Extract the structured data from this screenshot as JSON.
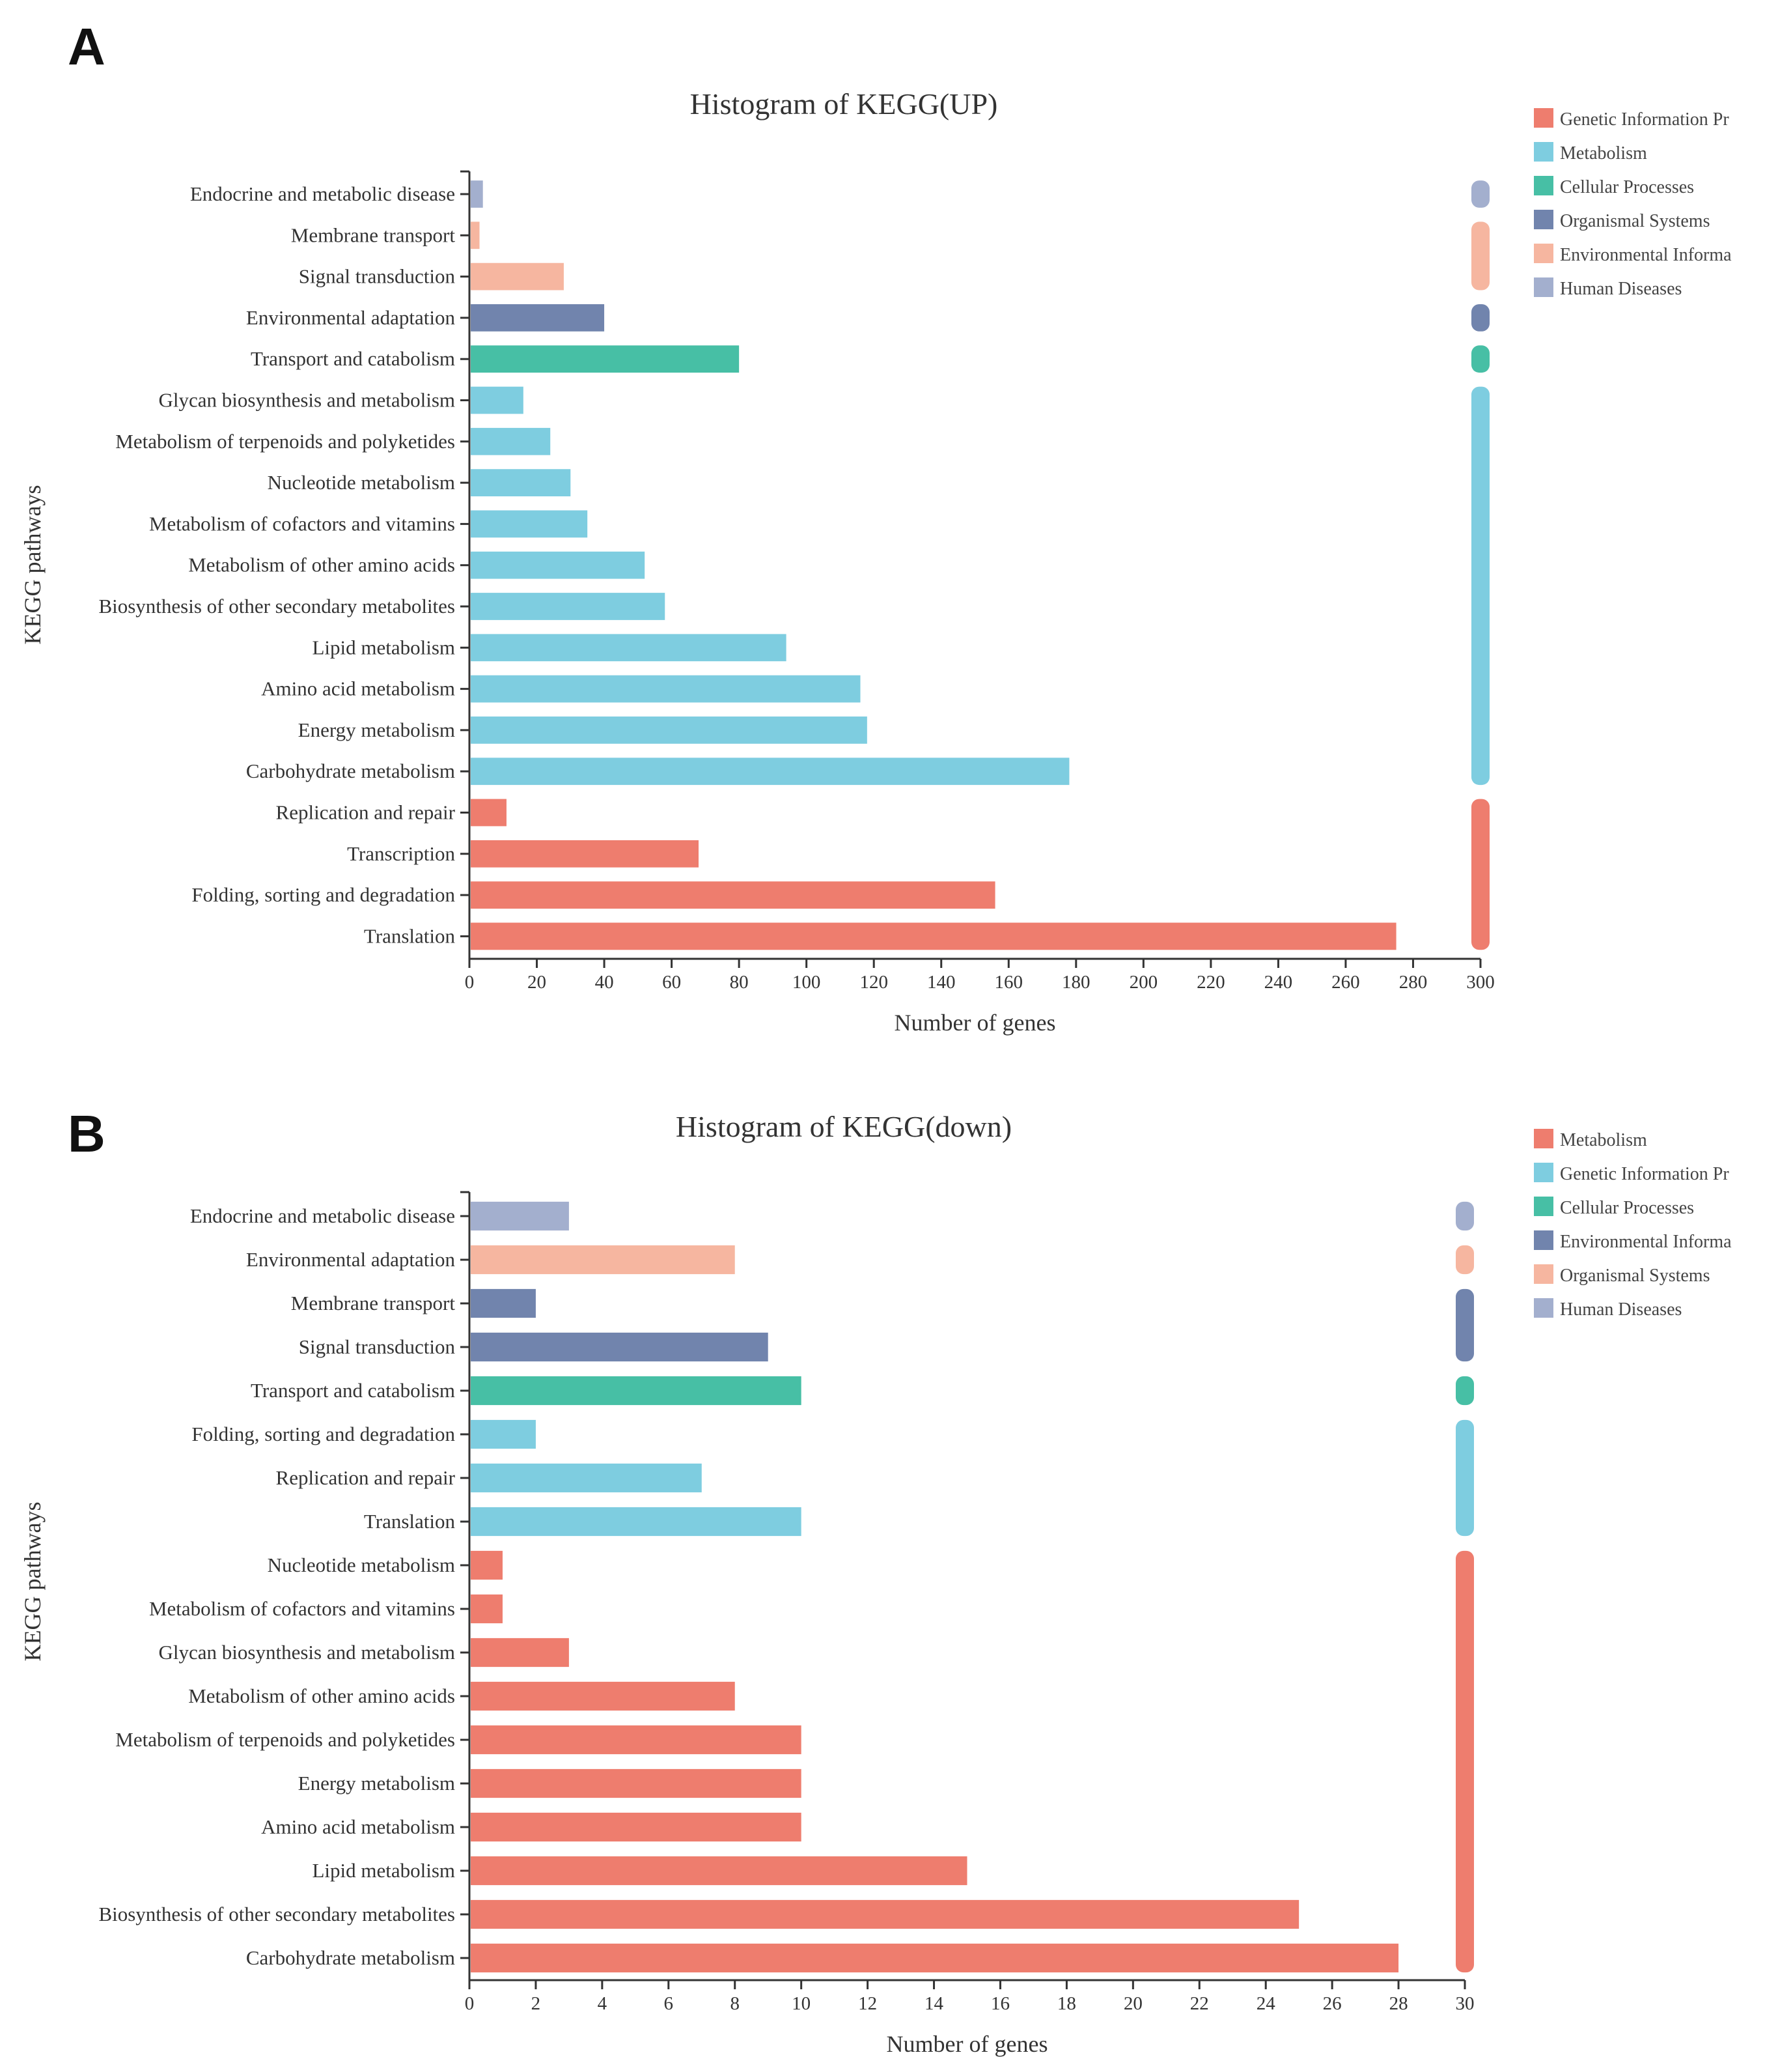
{
  "chart_data": [
    {
      "panel": "A",
      "type": "bar",
      "orientation": "horizontal",
      "title": "Histogram of KEGG(UP)",
      "xlabel": "Number of genes",
      "ylabel": "KEGG pathways",
      "xlim": [
        0,
        300
      ],
      "xticks": [
        0,
        20,
        40,
        60,
        80,
        100,
        120,
        140,
        160,
        180,
        200,
        220,
        240,
        260,
        280,
        300
      ],
      "grid": false,
      "legend_position": "right",
      "legend": [
        {
          "name": "Genetic Information Pr",
          "color": "#EE7D6E"
        },
        {
          "name": "Metabolism",
          "color": "#7ECDE0"
        },
        {
          "name": "Cellular Processes",
          "color": "#47BFA5"
        },
        {
          "name": "Organismal Systems",
          "color": "#7184AD"
        },
        {
          "name": "Environmental Informa",
          "color": "#F6B6A0"
        },
        {
          "name": "Human Diseases",
          "color": "#A3AFCE"
        }
      ],
      "bars": [
        {
          "category": "Endocrine and metabolic disease",
          "value": 4,
          "group": 5
        },
        {
          "category": "Membrane transport",
          "value": 3,
          "group": 4
        },
        {
          "category": "Signal transduction",
          "value": 28,
          "group": 4
        },
        {
          "category": "Environmental adaptation",
          "value": 40,
          "group": 3
        },
        {
          "category": "Transport and catabolism",
          "value": 80,
          "group": 2
        },
        {
          "category": "Glycan biosynthesis and metabolism",
          "value": 16,
          "group": 1
        },
        {
          "category": "Metabolism of terpenoids and polyketides",
          "value": 24,
          "group": 1
        },
        {
          "category": "Nucleotide metabolism",
          "value": 30,
          "group": 1
        },
        {
          "category": "Metabolism of cofactors and vitamins",
          "value": 35,
          "group": 1
        },
        {
          "category": "Metabolism of other amino acids",
          "value": 52,
          "group": 1
        },
        {
          "category": "Biosynthesis of other secondary metabolites",
          "value": 58,
          "group": 1
        },
        {
          "category": "Lipid metabolism",
          "value": 94,
          "group": 1
        },
        {
          "category": "Amino acid metabolism",
          "value": 116,
          "group": 1
        },
        {
          "category": "Energy metabolism",
          "value": 118,
          "group": 1
        },
        {
          "category": "Carbohydrate metabolism",
          "value": 178,
          "group": 1
        },
        {
          "category": "Replication and repair",
          "value": 11,
          "group": 0
        },
        {
          "category": "Transcription",
          "value": 68,
          "group": 0
        },
        {
          "category": "Folding, sorting and degradation",
          "value": 156,
          "group": 0
        },
        {
          "category": "Translation",
          "value": 275,
          "group": 0
        }
      ]
    },
    {
      "panel": "B",
      "type": "bar",
      "orientation": "horizontal",
      "title": "Histogram of KEGG(down)",
      "xlabel": "Number of genes",
      "ylabel": "KEGG pathways",
      "xlim": [
        0,
        30
      ],
      "xticks": [
        0,
        2,
        4,
        6,
        8,
        10,
        12,
        14,
        16,
        18,
        20,
        22,
        24,
        26,
        28,
        30
      ],
      "grid": false,
      "legend_position": "right",
      "legend": [
        {
          "name": "Metabolism",
          "color": "#EE7D6E"
        },
        {
          "name": "Genetic Information Pr",
          "color": "#7ECDE0"
        },
        {
          "name": "Cellular Processes",
          "color": "#47BFA5"
        },
        {
          "name": "Environmental Informa",
          "color": "#7184AD"
        },
        {
          "name": "Organismal Systems",
          "color": "#F6B6A0"
        },
        {
          "name": "Human Diseases",
          "color": "#A3AFCE"
        }
      ],
      "bars": [
        {
          "category": "Endocrine and metabolic disease",
          "value": 3,
          "group": 5
        },
        {
          "category": "Environmental adaptation",
          "value": 8,
          "group": 4
        },
        {
          "category": "Membrane transport",
          "value": 2,
          "group": 3
        },
        {
          "category": "Signal transduction",
          "value": 9,
          "group": 3
        },
        {
          "category": "Transport and catabolism",
          "value": 10,
          "group": 2
        },
        {
          "category": "Folding, sorting and degradation",
          "value": 2,
          "group": 1
        },
        {
          "category": "Replication and repair",
          "value": 7,
          "group": 1
        },
        {
          "category": "Translation",
          "value": 10,
          "group": 1
        },
        {
          "category": "Nucleotide metabolism",
          "value": 1,
          "group": 0
        },
        {
          "category": "Metabolism of cofactors and vitamins",
          "value": 1,
          "group": 0
        },
        {
          "category": "Glycan biosynthesis and metabolism",
          "value": 3,
          "group": 0
        },
        {
          "category": "Metabolism of other amino acids",
          "value": 8,
          "group": 0
        },
        {
          "category": "Metabolism of terpenoids and polyketides",
          "value": 10,
          "group": 0
        },
        {
          "category": "Energy metabolism",
          "value": 10,
          "group": 0
        },
        {
          "category": "Amino acid metabolism",
          "value": 10,
          "group": 0
        },
        {
          "category": "Lipid metabolism",
          "value": 15,
          "group": 0
        },
        {
          "category": "Biosynthesis of other secondary metabolites",
          "value": 25,
          "group": 0
        },
        {
          "category": "Carbohydrate metabolism",
          "value": 28,
          "group": 0
        }
      ]
    }
  ]
}
